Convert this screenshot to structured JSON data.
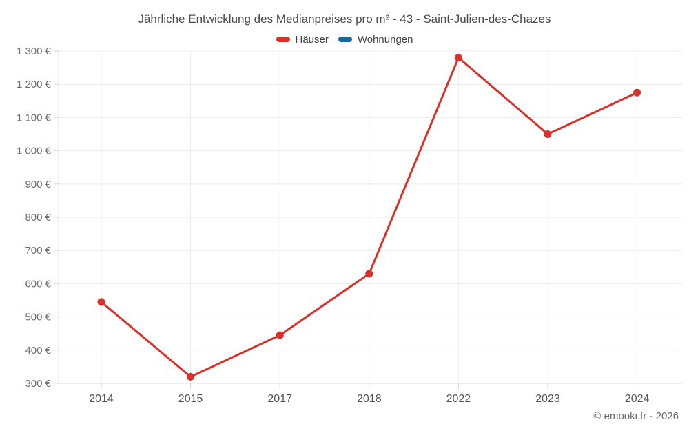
{
  "title": "Jährliche Entwicklung des Medianpreises pro m² - 43 - Saint-Julien-des-Chazes",
  "legend": {
    "items": [
      {
        "label": "Häuser",
        "color": "#d9302a"
      },
      {
        "label": "Wohnungen",
        "color": "#176a9c"
      }
    ]
  },
  "footer": "© emooki.fr - 2026",
  "colors": {
    "houses_series": "#d9302a",
    "apartments_series": "#176a9c",
    "gridline": "#ececec",
    "axis_line": "#dcdcdc",
    "tick": "#d6d6d6"
  },
  "chart_data": {
    "type": "line",
    "title": "Jährliche Entwicklung des Medianpreises pro m² - 43 - Saint-Julien-des-Chazes",
    "categories": [
      "2014",
      "2015",
      "2017",
      "2018",
      "2022",
      "2023",
      "2024"
    ],
    "series": [
      {
        "name": "Häuser",
        "color": "#d9302a",
        "values": [
          545,
          320,
          445,
          630,
          1280,
          1050,
          1175
        ]
      },
      {
        "name": "Wohnungen",
        "color": "#176a9c",
        "values": []
      }
    ],
    "xlabel": "",
    "ylabel": "",
    "unit": "€",
    "ylim": [
      300,
      1300
    ],
    "ytick_step": 100,
    "yticks": [
      "300 €",
      "400 €",
      "500 €",
      "600 €",
      "700 €",
      "800 €",
      "900 €",
      "1 000 €",
      "1 100 €",
      "1 200 €",
      "1 300 €"
    ],
    "grid": true,
    "legend_position": "top",
    "marker": "circle"
  }
}
